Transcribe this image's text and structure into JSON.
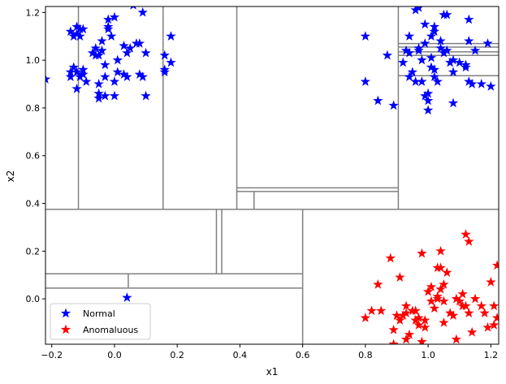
{
  "chart_data": {
    "type": "scatter",
    "title": "",
    "xlabel": "x1",
    "ylabel": "x2",
    "xlim": [
      -0.22,
      1.225
    ],
    "ylim": [
      -0.19,
      1.225
    ],
    "xticks": [
      -0.2,
      0.0,
      0.2,
      0.4,
      0.6,
      0.8,
      1.0,
      1.2
    ],
    "xtick_labels": [
      "−0.2",
      "0.0",
      "0.2",
      "0.4",
      "0.6",
      "0.8",
      "1.0",
      "1.2"
    ],
    "yticks": [
      0.0,
      0.2,
      0.4,
      0.6,
      0.8,
      1.0,
      1.2
    ],
    "ytick_labels": [
      "0.0",
      "0.2",
      "0.4",
      "0.6",
      "0.8",
      "1.0",
      "1.2"
    ],
    "grid": false,
    "legend_placement": "lower-left",
    "marker": "star",
    "series": [
      {
        "name": "Normal",
        "color": "#0000ff",
        "points": [
          [
            -0.22,
            0.92
          ],
          [
            0.04,
            0.005
          ],
          [
            -0.14,
            0.93
          ],
          [
            -0.12,
            1.14
          ],
          [
            -0.13,
            1.1
          ],
          [
            -0.11,
            1.13
          ],
          [
            -0.1,
            1.13
          ],
          [
            -0.14,
            1.12
          ],
          [
            -0.12,
            1.11
          ],
          [
            -0.11,
            1.1
          ],
          [
            -0.1,
            0.96
          ],
          [
            -0.13,
            0.97
          ],
          [
            -0.12,
            0.95
          ],
          [
            -0.1,
            0.94
          ],
          [
            -0.09,
            0.91
          ],
          [
            -0.14,
            0.95
          ],
          [
            -0.12,
            0.88
          ],
          [
            -0.11,
            0.93
          ],
          [
            -0.07,
            1.03
          ],
          [
            -0.06,
            1.05
          ],
          [
            -0.06,
            1.02
          ],
          [
            -0.05,
            1.02
          ],
          [
            -0.04,
            1.04
          ],
          [
            -0.03,
            0.98
          ],
          [
            -0.04,
            1.08
          ],
          [
            -0.02,
            1.17
          ],
          [
            -0.02,
            1.14
          ],
          [
            -0.02,
            1.13
          ],
          [
            -0.01,
            1.1
          ],
          [
            0.0,
            1.18
          ],
          [
            -0.05,
            0.9
          ],
          [
            -0.03,
            0.93
          ],
          [
            -0.05,
            0.86
          ],
          [
            -0.05,
            0.84
          ],
          [
            -0.03,
            0.85
          ],
          [
            0.0,
            0.85
          ],
          [
            0.01,
            1.0
          ],
          [
            0.01,
            0.95
          ],
          [
            0.0,
            0.91
          ],
          [
            0.03,
            1.06
          ],
          [
            0.04,
            1.03
          ],
          [
            0.05,
            1.05
          ],
          [
            0.04,
            0.93
          ],
          [
            0.03,
            0.94
          ],
          [
            0.07,
            1.07
          ],
          [
            0.08,
            1.07
          ],
          [
            0.06,
            1.23
          ],
          [
            0.08,
            0.94
          ],
          [
            0.09,
            0.93
          ],
          [
            0.1,
            1.03
          ],
          [
            0.09,
            1.2
          ],
          [
            0.1,
            0.85
          ],
          [
            0.16,
            1.02
          ],
          [
            0.16,
            0.96
          ],
          [
            0.16,
            0.95
          ],
          [
            0.18,
            0.99
          ],
          [
            0.18,
            1.1
          ],
          [
            0.8,
            1.1
          ],
          [
            0.8,
            0.91
          ],
          [
            0.84,
            0.83
          ],
          [
            0.87,
            1.02
          ],
          [
            0.89,
            0.81
          ],
          [
            0.92,
            0.99
          ],
          [
            0.93,
            1.04
          ],
          [
            0.94,
            1.03
          ],
          [
            0.94,
            1.1
          ],
          [
            0.94,
            0.93
          ],
          [
            0.95,
            0.95
          ],
          [
            0.96,
            0.91
          ],
          [
            0.96,
            1.21
          ],
          [
            0.97,
            1.22
          ],
          [
            0.97,
            1.05
          ],
          [
            0.97,
            1.04
          ],
          [
            0.98,
            0.91
          ],
          [
            0.98,
            1.0
          ],
          [
            0.99,
            1.07
          ],
          [
            0.99,
            1.15
          ],
          [
            0.99,
            0.85
          ],
          [
            1.0,
            0.86
          ],
          [
            1.0,
            0.79
          ],
          [
            1.0,
            0.83
          ],
          [
            1.01,
            1.1
          ],
          [
            1.01,
            1.01
          ],
          [
            1.01,
            0.97
          ],
          [
            1.02,
            0.96
          ],
          [
            1.02,
            0.93
          ],
          [
            1.02,
            1.14
          ],
          [
            1.02,
            1.12
          ],
          [
            1.03,
            0.91
          ],
          [
            1.04,
            1.05
          ],
          [
            1.04,
            1.08
          ],
          [
            1.05,
            1.03
          ],
          [
            1.05,
            1.19
          ],
          [
            1.06,
            1.19
          ],
          [
            1.06,
            1.04
          ],
          [
            1.07,
            0.99
          ],
          [
            1.08,
            1.0
          ],
          [
            1.08,
            0.95
          ],
          [
            1.08,
            0.82
          ],
          [
            1.1,
            0.99
          ],
          [
            1.12,
            0.98
          ],
          [
            1.12,
            0.97
          ],
          [
            1.13,
            0.91
          ],
          [
            1.13,
            1.08
          ],
          [
            1.13,
            1.17
          ],
          [
            1.14,
            0.9
          ],
          [
            1.15,
            1.04
          ],
          [
            1.17,
            0.9
          ],
          [
            1.19,
            1.07
          ],
          [
            1.2,
            0.89
          ]
        ]
      },
      {
        "name": "Anomaluous",
        "color": "#ff0000",
        "points": [
          [
            0.8,
            -0.08
          ],
          [
            0.82,
            -0.05
          ],
          [
            0.84,
            0.06
          ],
          [
            0.85,
            -0.05
          ],
          [
            0.88,
            0.17
          ],
          [
            0.89,
            -0.13
          ],
          [
            0.89,
            -0.19
          ],
          [
            0.9,
            -0.07
          ],
          [
            0.91,
            -0.09
          ],
          [
            0.91,
            0.09
          ],
          [
            0.92,
            -0.07
          ],
          [
            0.93,
            -0.03
          ],
          [
            0.93,
            -0.17
          ],
          [
            0.93,
            -0.06
          ],
          [
            0.94,
            -0.15
          ],
          [
            0.95,
            -0.05
          ],
          [
            0.96,
            -0.09
          ],
          [
            0.96,
            -0.05
          ],
          [
            0.97,
            -0.08
          ],
          [
            0.97,
            -0.11
          ],
          [
            0.98,
            -0.18
          ],
          [
            0.98,
            0.19
          ],
          [
            0.99,
            -0.09
          ],
          [
            0.99,
            -0.12
          ],
          [
            1.0,
            0.03
          ],
          [
            1.01,
            0.05
          ],
          [
            1.01,
            -0.01
          ],
          [
            1.02,
            -0.04
          ],
          [
            1.03,
            0.01
          ],
          [
            1.03,
            0.0
          ],
          [
            1.03,
            0.13
          ],
          [
            1.04,
            0.04
          ],
          [
            1.04,
            0.13
          ],
          [
            1.04,
            0.2
          ],
          [
            1.05,
            0.06
          ],
          [
            1.05,
            -0.01
          ],
          [
            1.05,
            -0.1
          ],
          [
            1.06,
            0.11
          ],
          [
            1.07,
            -0.06
          ],
          [
            1.08,
            -0.07
          ],
          [
            1.09,
            0.0
          ],
          [
            1.09,
            -0.17
          ],
          [
            1.1,
            -0.01
          ],
          [
            1.11,
            0.02
          ],
          [
            1.11,
            -0.03
          ],
          [
            1.12,
            0.27
          ],
          [
            1.12,
            -0.03
          ],
          [
            1.13,
            0.24
          ],
          [
            1.13,
            -0.06
          ],
          [
            1.14,
            -0.14
          ],
          [
            1.15,
            0.0
          ],
          [
            1.17,
            -0.03
          ],
          [
            1.18,
            -0.06
          ],
          [
            1.19,
            -0.12
          ],
          [
            1.2,
            0.07
          ],
          [
            1.21,
            -0.03
          ],
          [
            1.21,
            -0.11
          ],
          [
            1.22,
            0.14
          ],
          [
            1.22,
            -0.08
          ]
        ]
      }
    ],
    "split_lines_color": "#808080",
    "split_lines": [
      {
        "orient": "h",
        "at": 0.375,
        "from": -0.22,
        "to": 1.225
      },
      {
        "orient": "v",
        "at": -0.115,
        "from": 0.375,
        "to": 1.225
      },
      {
        "orient": "v",
        "at": 0.155,
        "from": 0.375,
        "to": 1.225
      },
      {
        "orient": "v",
        "at": 0.39,
        "from": 0.375,
        "to": 1.225
      },
      {
        "orient": "v",
        "at": 0.905,
        "from": 0.375,
        "to": 1.225
      },
      {
        "orient": "h",
        "at": 0.465,
        "from": 0.39,
        "to": 0.905
      },
      {
        "orient": "h",
        "at": 0.45,
        "from": 0.39,
        "to": 0.905
      },
      {
        "orient": "v",
        "at": 0.445,
        "from": 0.375,
        "to": 0.45
      },
      {
        "orient": "h",
        "at": 1.07,
        "from": 0.905,
        "to": 1.225
      },
      {
        "orient": "h",
        "at": 1.055,
        "from": 0.905,
        "to": 1.225
      },
      {
        "orient": "h",
        "at": 1.035,
        "from": 0.905,
        "to": 1.225
      },
      {
        "orient": "h",
        "at": 1.02,
        "from": 0.905,
        "to": 1.225
      },
      {
        "orient": "h",
        "at": 0.935,
        "from": 0.905,
        "to": 1.225
      },
      {
        "orient": "v",
        "at": 0.6,
        "from": -0.19,
        "to": 0.375
      },
      {
        "orient": "v",
        "at": 0.325,
        "from": 0.105,
        "to": 0.375
      },
      {
        "orient": "v",
        "at": 0.342,
        "from": 0.105,
        "to": 0.375
      },
      {
        "orient": "h",
        "at": 0.105,
        "from": -0.22,
        "to": 0.6
      },
      {
        "orient": "h",
        "at": 0.045,
        "from": -0.22,
        "to": 0.6
      },
      {
        "orient": "v",
        "at": 0.044,
        "from": 0.045,
        "to": 0.105
      }
    ]
  }
}
